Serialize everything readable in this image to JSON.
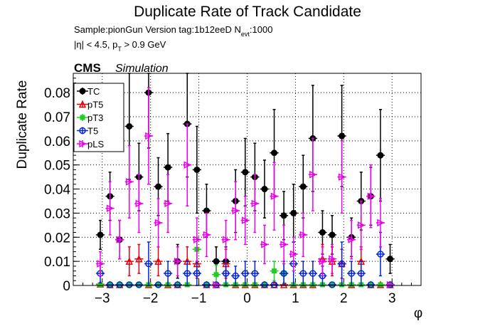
{
  "title": "Duplicate Rate of Track Candidate",
  "info": {
    "line1_prefix": "Sample:pionGun   Version tag:1b12eeD  N",
    "line1_sub": "evt",
    "line1_suffix": ":1000",
    "line2_prefix": "|η| < 4.5, p",
    "line2_sub": "T",
    "line2_suffix": " > 0.9 GeV"
  },
  "cms": {
    "label": "CMS",
    "sublabel": "Simulation"
  },
  "chart_data": {
    "type": "scatter",
    "title": "Duplicate Rate of Track Candidate",
    "xlabel": "φ",
    "ylabel": "Duplicate Rate",
    "xlim": [
      -3.6,
      3.6
    ],
    "ylim": [
      0,
      0.088
    ],
    "grid": true,
    "legend_position": "top-left",
    "xticks": [
      "−3",
      "−2",
      "−1",
      "0",
      "1",
      "2",
      "3"
    ],
    "xtick_values": [
      -3,
      -2,
      -1,
      0,
      1,
      2,
      3
    ],
    "yticks": [
      "0",
      "0.01",
      "0.02",
      "0.03",
      "0.04",
      "0.05",
      "0.06",
      "0.07",
      "0.08"
    ],
    "ytick_values": [
      0,
      0.01,
      0.02,
      0.03,
      0.04,
      0.05,
      0.06,
      0.07,
      0.08
    ],
    "x": [
      -3.04,
      -2.84,
      -2.64,
      -2.44,
      -2.24,
      -2.04,
      -1.84,
      -1.64,
      -1.44,
      -1.24,
      -1.04,
      -0.84,
      -0.64,
      -0.44,
      -0.24,
      -0.04,
      0.16,
      0.36,
      0.56,
      0.76,
      0.96,
      1.16,
      1.36,
      1.56,
      1.76,
      1.96,
      2.16,
      2.36,
      2.56,
      2.76,
      2.96
    ],
    "series": [
      {
        "name": "TC",
        "color": "#000000",
        "marker": "filled-circle",
        "values": [
          0.021,
          0.037,
          0.019,
          0.066,
          0.045,
          0.08,
          0.041,
          0.049,
          0.01,
          0.067,
          0.048,
          0.031,
          0.01,
          0.01,
          0.035,
          0.047,
          0.045,
          0.04,
          0.055,
          0.029,
          0.03,
          0.041,
          0.061,
          0.022,
          0.021,
          0.062,
          0.02,
          0.035,
          0.037,
          0.054,
          0.011
        ],
        "err": [
          0.006,
          0.01,
          0.008,
          0.022,
          0.014,
          0.023,
          0.012,
          0.014,
          0.007,
          0.022,
          0.018,
          0.011,
          0.006,
          0.006,
          0.013,
          0.014,
          0.014,
          0.012,
          0.018,
          0.01,
          0.012,
          0.013,
          0.022,
          0.009,
          0.008,
          0.021,
          0.008,
          0.012,
          0.012,
          0.019,
          0.006
        ]
      },
      {
        "name": "pT5",
        "color": "#e8000b",
        "marker": "open-triangle",
        "values": [
          0.0005,
          0.0003,
          0.0003,
          0.01,
          0.011,
          0.0003,
          0.01,
          0.0003,
          0.0003,
          0.01,
          0.009,
          0.0003,
          0.0003,
          0.009,
          0.0003,
          0.0003,
          0.0003,
          0.0003,
          0.0003,
          0.0003,
          0.0003,
          0.0003,
          0.0003,
          0.011,
          0.01,
          0.009,
          0.0003,
          0.01,
          0.0003,
          0.0003,
          0.0003
        ],
        "err": [
          0.0,
          0.0,
          0.0,
          0.006,
          0.006,
          0.0,
          0.006,
          0.0,
          0.0,
          0.006,
          0.006,
          0.0,
          0.0,
          0.006,
          0.0,
          0.0,
          0.0,
          0.0,
          0.0,
          0.0,
          0.0,
          0.0,
          0.0,
          0.006,
          0.006,
          0.006,
          0.0,
          0.006,
          0.0,
          0.0,
          0.0
        ]
      },
      {
        "name": "pT3",
        "color": "#22cc22",
        "marker": "filled-square",
        "values": [
          0.0003,
          0.0003,
          0.0003,
          0.0003,
          0.0003,
          0.0003,
          0.0003,
          0.0003,
          0.0003,
          0.0003,
          0.015,
          0.0003,
          0.0045,
          0.0003,
          0.0003,
          0.0003,
          0.0003,
          0.0003,
          0.006,
          0.005,
          0.0003,
          0.0003,
          0.0003,
          0.0003,
          0.0003,
          0.0003,
          0.0003,
          0.0003,
          0.0003,
          0.0003,
          0.0003
        ],
        "err": [
          0.0,
          0.0,
          0.0,
          0.0,
          0.0,
          0.0,
          0.0,
          0.0,
          0.0,
          0.0,
          0.005,
          0.0,
          0.004,
          0.0,
          0.0,
          0.0,
          0.0,
          0.0,
          0.004,
          0.004,
          0.0,
          0.0,
          0.0,
          0.0,
          0.0,
          0.0,
          0.0,
          0.0,
          0.0,
          0.0,
          0.0
        ]
      },
      {
        "name": "T5",
        "color": "#0022dd",
        "marker": "open-circle",
        "values": [
          0.005,
          0.0003,
          0.0003,
          0.0003,
          0.0003,
          0.009,
          0.0003,
          0.005,
          0.0003,
          0.005,
          0.005,
          0.0003,
          0.0003,
          0.005,
          0.004,
          0.005,
          0.005,
          0.0003,
          0.0003,
          0.005,
          0.009,
          0.005,
          0.005,
          0.004,
          0.0003,
          0.009,
          0.005,
          0.005,
          0.0003,
          0.013,
          0.0003
        ],
        "err": [
          0.004,
          0.0,
          0.0,
          0.0,
          0.0,
          0.009,
          0.0,
          0.005,
          0.0,
          0.005,
          0.005,
          0.0,
          0.0,
          0.005,
          0.004,
          0.005,
          0.005,
          0.0,
          0.0,
          0.005,
          0.009,
          0.005,
          0.005,
          0.004,
          0.0,
          0.009,
          0.005,
          0.005,
          0.0,
          0.009,
          0.0
        ]
      },
      {
        "name": "pLS",
        "color": "#ee00ee",
        "marker": "triangle-open",
        "values": [
          0.009,
          0.032,
          0.019,
          0.043,
          0.034,
          0.062,
          0.026,
          0.034,
          0.01,
          0.05,
          0.019,
          0.021,
          0.0003,
          0.019,
          0.031,
          0.027,
          0.034,
          0.017,
          0.037,
          0.017,
          0.013,
          0.021,
          0.046,
          0.01,
          0.011,
          0.045,
          0.019,
          0.025,
          0.037,
          0.026,
          0.0003
        ],
        "err": [
          0.005,
          0.011,
          0.008,
          0.015,
          0.012,
          0.02,
          0.01,
          0.012,
          0.006,
          0.017,
          0.009,
          0.009,
          0.0,
          0.008,
          0.012,
          0.01,
          0.012,
          0.008,
          0.014,
          0.008,
          0.007,
          0.009,
          0.015,
          0.006,
          0.006,
          0.015,
          0.008,
          0.01,
          0.013,
          0.01,
          0.0
        ]
      }
    ]
  }
}
